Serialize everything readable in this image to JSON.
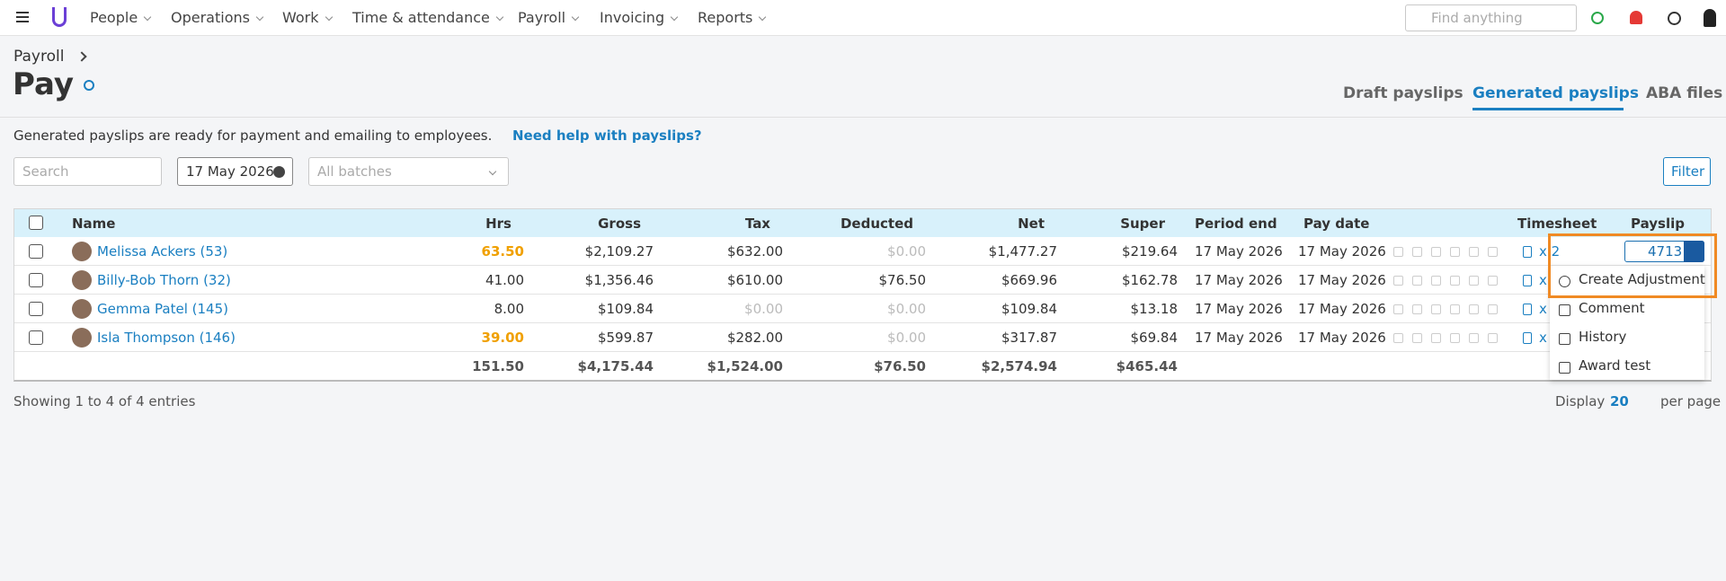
{
  "nav": [
    "People",
    "Operations",
    "Work",
    "Time & attendance",
    "Payroll",
    "Invoicing",
    "Reports"
  ],
  "search_placeholder": "Find anything",
  "breadcrumb": "Payroll",
  "title": "Pay",
  "tabs": [
    "Draft payslips",
    "Generated payslips",
    "ABA files"
  ],
  "description": "Generated payslips are ready for payment and emailing to employees.",
  "help_link": "Need help with payslips?",
  "filters": {
    "search": "Search",
    "date": "17 May 2026",
    "batches": "All batches",
    "button": "Filter"
  },
  "table": {
    "headers": [
      "Name",
      "Hrs",
      "Gross",
      "Tax",
      "Deducted",
      "Net",
      "Super",
      "Period end",
      "Pay date",
      "Timesheet",
      "Payslip"
    ],
    "rows": [
      [
        "Melissa Ackers (53)",
        "63.50",
        "$2,109.27",
        "$632.00",
        "$0.00",
        "$1,477.27",
        "$219.64",
        "17 May 2026",
        "17 May 2026",
        "x 2",
        "4713"
      ],
      [
        "Billy-Bob Thorn (32)",
        "41.00",
        "$1,356.46",
        "$610.00",
        "$76.50",
        "$669.96",
        "$162.78",
        "17 May 2026",
        "17 May 2026",
        "x",
        ""
      ],
      [
        "Gemma Patel (145)",
        "8.00",
        "$109.84",
        "$0.00",
        "$0.00",
        "$109.84",
        "$13.18",
        "17 May 2026",
        "17 May 2026",
        "x",
        ""
      ],
      [
        "Isla Thompson (146)",
        "39.00",
        "$599.87",
        "$282.00",
        "$0.00",
        "$317.87",
        "$69.84",
        "17 May 2026",
        "17 May 2026",
        "x",
        ""
      ]
    ],
    "totals": [
      "151.50",
      "$4,175.44",
      "$1,524.00",
      "$76.50",
      "$2,574.94",
      "$465.44"
    ]
  },
  "footer": {
    "showing": "Showing 1 to 4 of 4 entries",
    "display": "Display",
    "per_page_value": "20",
    "per_page": "per page"
  },
  "dropdown": [
    "Create Adjustment",
    "Comment",
    "History",
    "Award test"
  ]
}
